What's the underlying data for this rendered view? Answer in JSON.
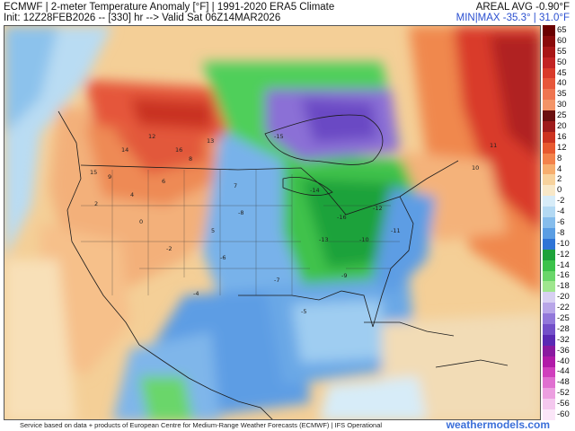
{
  "header": {
    "title_line1": "ECMWF | 2-meter Temperature Anomaly [°F] | 1991-2020 ERA5 Climate",
    "title_line2": "Init: 12Z28FEB2026 -- [330] hr --> Valid Sat 06Z14MAR2026",
    "areal_avg": "AREAL AVG -0.90°F",
    "min_max": "MIN|MAX -35.3° | 31.0°F"
  },
  "colorbar": {
    "levels": [
      {
        "label": "65",
        "color": "#6a0000"
      },
      {
        "label": "60",
        "color": "#8a0a0a"
      },
      {
        "label": "55",
        "color": "#a81616"
      },
      {
        "label": "50",
        "color": "#c22323"
      },
      {
        "label": "45",
        "color": "#d93a2a"
      },
      {
        "label": "40",
        "color": "#e7563a"
      },
      {
        "label": "35",
        "color": "#ef7551"
      },
      {
        "label": "30",
        "color": "#f39467"
      },
      {
        "label": "25",
        "color": "#6b1010"
      },
      {
        "label": "20",
        "color": "#9e1c1c"
      },
      {
        "label": "16",
        "color": "#cc3320"
      },
      {
        "label": "12",
        "color": "#e8592f"
      },
      {
        "label": "8",
        "color": "#f3824a"
      },
      {
        "label": "4",
        "color": "#f6ae6e"
      },
      {
        "label": "2",
        "color": "#f7d29c"
      },
      {
        "label": "0",
        "color": "#f8e8c8"
      },
      {
        "label": "-2",
        "color": "#d7ecf8"
      },
      {
        "label": "-4",
        "color": "#b3d9f3"
      },
      {
        "label": "-6",
        "color": "#86bdec"
      },
      {
        "label": "-8",
        "color": "#5a9de3"
      },
      {
        "label": "-10",
        "color": "#2f74d6"
      },
      {
        "label": "-12",
        "color": "#1ea23a"
      },
      {
        "label": "-14",
        "color": "#3cc24a"
      },
      {
        "label": "-16",
        "color": "#6ad66a"
      },
      {
        "label": "-18",
        "color": "#9fe68e"
      },
      {
        "label": "-20",
        "color": "#d8d0f2"
      },
      {
        "label": "-22",
        "color": "#b8a6e8"
      },
      {
        "label": "-25",
        "color": "#9278da"
      },
      {
        "label": "-28",
        "color": "#7350c9"
      },
      {
        "label": "-32",
        "color": "#5a2ab4"
      },
      {
        "label": "-36",
        "color": "#8a1aa0"
      },
      {
        "label": "-40",
        "color": "#b11aa8"
      },
      {
        "label": "-44",
        "color": "#d03fbd"
      },
      {
        "label": "-48",
        "color": "#e06fd0"
      },
      {
        "label": "-52",
        "color": "#ec9fe0"
      },
      {
        "label": "-56",
        "color": "#f4c8ee"
      },
      {
        "label": "-60",
        "color": "#fbe6f8"
      }
    ]
  },
  "map_labels": [
    "-14",
    "-15",
    "-16",
    "-10",
    "-12",
    "-8",
    "-6",
    "-4",
    "-2",
    "2",
    "4",
    "6",
    "8",
    "12",
    "13",
    "14",
    "16",
    "-11",
    "-13",
    "-9",
    "-7",
    "10",
    "11",
    "15",
    "0",
    "-5",
    "5",
    "9",
    "7"
  ],
  "footer": {
    "credit": "Service based on data + products of European Centre for Medium-Range Weather Forecasts (ECMWF) | IFS Operational",
    "brand": "weathermodels.com"
  }
}
